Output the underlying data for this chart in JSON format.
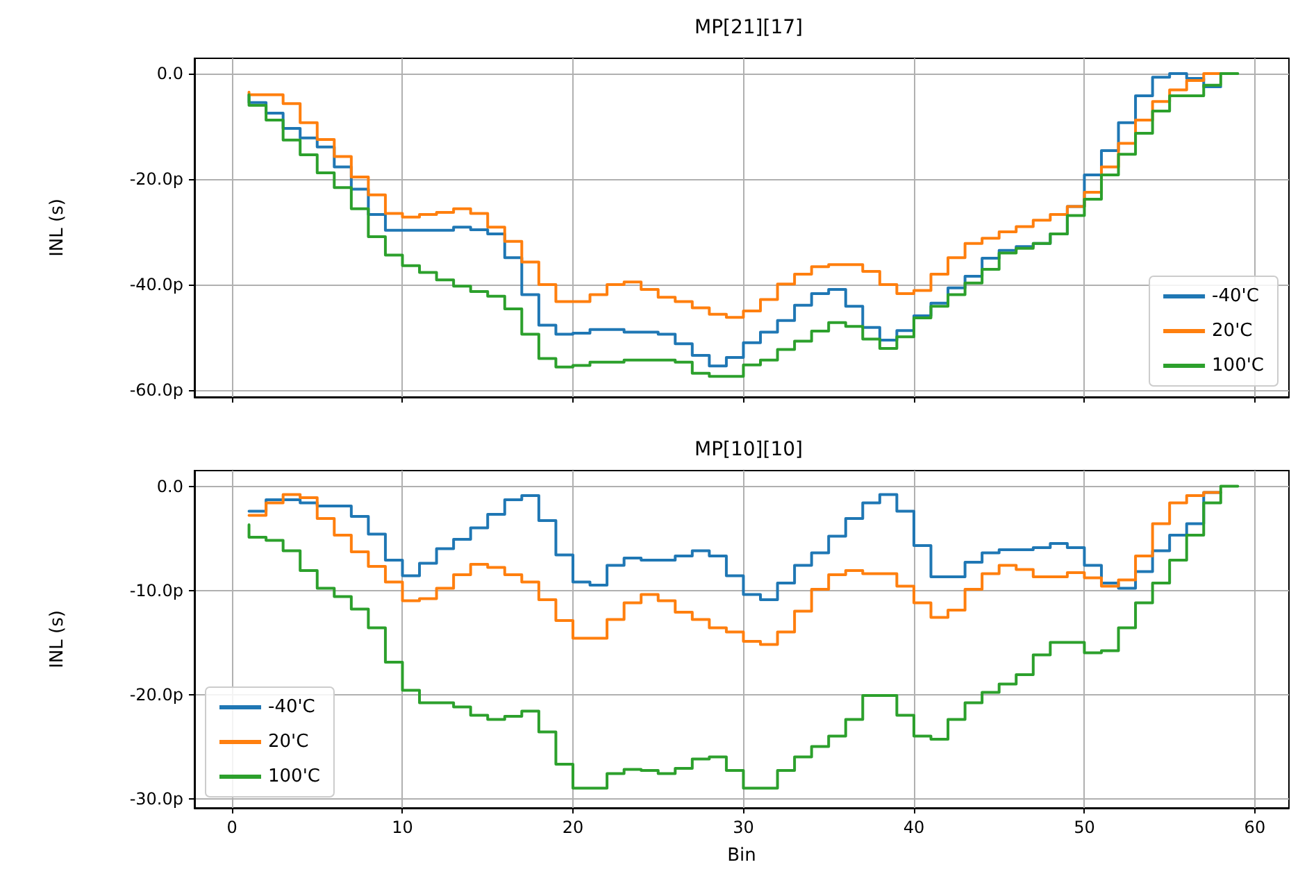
{
  "chart_data": [
    {
      "type": "step",
      "title": "MP[21][17]",
      "ylabel": "INL (s)",
      "x": [
        1,
        2,
        3,
        4,
        5,
        6,
        7,
        8,
        9,
        10,
        11,
        12,
        13,
        14,
        15,
        16,
        17,
        18,
        19,
        20,
        21,
        22,
        23,
        24,
        25,
        26,
        27,
        28,
        29,
        30,
        31,
        32,
        33,
        34,
        35,
        36,
        37,
        38,
        39,
        40,
        41,
        42,
        43,
        44,
        45,
        46,
        47,
        48,
        49,
        50,
        51,
        52,
        53,
        54,
        55,
        56,
        57,
        58,
        59
      ],
      "xlim": [
        -2.2,
        62
      ],
      "xticks": [
        0,
        10,
        20,
        30,
        40,
        50,
        60
      ],
      "ylim": [
        -61.3,
        2.9
      ],
      "yticks": [
        {
          "value": 0,
          "label": "0.0"
        },
        {
          "value": -20,
          "label": "-20.0p"
        },
        {
          "value": -40,
          "label": "-40.0p"
        },
        {
          "value": -60,
          "label": "-60.0p"
        }
      ],
      "tick_labels": "y",
      "grid": true,
      "legend": "bottom right",
      "marker": "none",
      "line_style": "solid",
      "series": [
        {
          "name": "-40'C",
          "color": "#1f77b4",
          "values": [
            -4,
            -5.5,
            -7.5,
            -10.4,
            -12.2,
            -13.9,
            -17.7,
            -21.9,
            -26.7,
            -29.7,
            -29.7,
            -29.7,
            -29.7,
            -29.1,
            -29.6,
            -30.4,
            -34.9,
            -41.9,
            -47.7,
            -49.4,
            -49.2,
            -48.5,
            -48.5,
            -49,
            -49,
            -49.4,
            -51.2,
            -53.4,
            -55.4,
            -53.8,
            -51,
            -49,
            -46.8,
            -43.9,
            -41.7,
            -40.9,
            -44.1,
            -48.1,
            -50.5,
            -48.7,
            -45.9,
            -43.5,
            -40.6,
            -38.4,
            -35,
            -33.5,
            -32.8,
            -32.2,
            -30.4,
            -25.2,
            -19.2,
            -14.6,
            -9.3,
            -4.2,
            -0.7,
            0,
            -0.9,
            -2.5,
            null
          ]
        },
        {
          "name": "20'C",
          "color": "#ff7f0e",
          "values": [
            -3.5,
            -4,
            -4,
            -5.7,
            -9.3,
            -12.5,
            -15.7,
            -19.6,
            -23,
            -26.5,
            -27.2,
            -26.7,
            -26.3,
            -25.6,
            -26.5,
            -29.1,
            -31.8,
            -35.7,
            -40,
            -43.2,
            -43.2,
            -41.9,
            -40,
            -39.5,
            -40.9,
            -42.4,
            -43.2,
            -44.4,
            -45.6,
            -46.2,
            -45,
            -42.8,
            -39.9,
            -38,
            -36.6,
            -36.2,
            -36.2,
            -37.5,
            -40,
            -41.7,
            -41.1,
            -38,
            -34.9,
            -32.2,
            -31.2,
            -30,
            -29,
            -27.8,
            -26.7,
            -25.2,
            -22.5,
            -17.7,
            -13.2,
            -8.8,
            -5.3,
            -3.1,
            -1.3,
            0,
            null
          ]
        },
        {
          "name": "100'C",
          "color": "#2ca02c",
          "values": [
            -4,
            -6,
            -8.8,
            -12.6,
            -15.4,
            -18.8,
            -21.6,
            -25.6,
            -30.9,
            -34.4,
            -36.4,
            -37.7,
            -39.1,
            -40.3,
            -41.3,
            -42.2,
            -44.6,
            -49.4,
            -54,
            -55.6,
            -55.3,
            -54.7,
            -54.7,
            -54.3,
            -54.3,
            -54.3,
            -54.7,
            -56.8,
            -57.4,
            -57.4,
            -55.2,
            -54.3,
            -52.3,
            -50.7,
            -48.8,
            -47.2,
            -47.9,
            -50.3,
            -52.1,
            -49.9,
            -46.3,
            -44.1,
            -41.9,
            -39.7,
            -37.1,
            -34,
            -33.1,
            -32.2,
            -30.4,
            -26.9,
            -23.8,
            -19.2,
            -15.3,
            -11.3,
            -7.1,
            -4.2,
            -4.2,
            -2.2,
            0
          ]
        }
      ]
    },
    {
      "type": "step",
      "title": "MP[10][10]",
      "xlabel": "Bin",
      "ylabel": "INL (s)",
      "x": [
        1,
        2,
        3,
        4,
        5,
        6,
        7,
        8,
        9,
        10,
        11,
        12,
        13,
        14,
        15,
        16,
        17,
        18,
        19,
        20,
        21,
        22,
        23,
        24,
        25,
        26,
        27,
        28,
        29,
        30,
        31,
        32,
        33,
        34,
        35,
        36,
        37,
        38,
        39,
        40,
        41,
        42,
        43,
        44,
        45,
        46,
        47,
        48,
        49,
        50,
        51,
        52,
        53,
        54,
        55,
        56,
        57,
        58,
        59
      ],
      "xlim": [
        -2.2,
        62
      ],
      "xticks": [
        0,
        10,
        20,
        30,
        40,
        50,
        60
      ],
      "ylim": [
        -30.9,
        1.5
      ],
      "yticks": [
        {
          "value": 0,
          "label": "0.0"
        },
        {
          "value": -10,
          "label": "-10.0p"
        },
        {
          "value": -20,
          "label": "-20.0p"
        },
        {
          "value": -30,
          "label": "-30.0p"
        }
      ],
      "grid": true,
      "legend": "bottom left",
      "marker": "none",
      "line_style": "solid",
      "series": [
        {
          "name": "-40'C",
          "color": "#1f77b4",
          "values": [
            -2.4,
            -2.4,
            -1.3,
            -1.3,
            -1.6,
            -1.9,
            -1.9,
            -2.9,
            -4.6,
            -7.1,
            -8.6,
            -7.4,
            -6,
            -5.1,
            -4,
            -2.7,
            -1.3,
            -0.9,
            -3.3,
            -6.6,
            -9.2,
            -9.5,
            -7.6,
            -6.9,
            -7.1,
            -7.1,
            -6.7,
            -6.2,
            -6.7,
            -8.6,
            -10.4,
            -10.9,
            -9.3,
            -7.6,
            -6.4,
            -4.8,
            -3.1,
            -1.6,
            -0.8,
            -2.4,
            -5.7,
            -8.7,
            -8.7,
            -7.3,
            -6.4,
            -6.1,
            -6.1,
            -5.9,
            -5.5,
            -5.9,
            -7.6,
            -9.3,
            -9.8,
            -8.2,
            -6.2,
            -4.7,
            -3.6,
            -0.6,
            null
          ]
        },
        {
          "name": "20'C",
          "color": "#ff7f0e",
          "values": [
            -2.8,
            -2.8,
            -1.6,
            -0.8,
            -1.1,
            -3.1,
            -4.7,
            -6.3,
            -7.7,
            -9.2,
            -11,
            -10.8,
            -9.8,
            -8.5,
            -7.5,
            -7.8,
            -8.5,
            -9.2,
            -10.9,
            -12.9,
            -14.6,
            -14.6,
            -12.8,
            -11.2,
            -10.4,
            -11,
            -12.1,
            -12.8,
            -13.6,
            -14,
            -14.9,
            -15.2,
            -14,
            -12,
            -9.9,
            -8.5,
            -8.1,
            -8.4,
            -8.4,
            -9.6,
            -11.2,
            -12.6,
            -11.9,
            -9.9,
            -8.4,
            -7.6,
            -8,
            -8.7,
            -8.7,
            -8.3,
            -8.8,
            -9.6,
            -9,
            -6.7,
            -3.6,
            -1.6,
            -0.9,
            -0.6,
            null
          ]
        },
        {
          "name": "100'C",
          "color": "#2ca02c",
          "values": [
            -3.7,
            -4.9,
            -5.2,
            -6.2,
            -8.1,
            -9.8,
            -10.6,
            -11.8,
            -13.6,
            -16.9,
            -19.6,
            -20.8,
            -20.8,
            -21.2,
            -22,
            -22.4,
            -22.1,
            -21.6,
            -23.6,
            -26.7,
            -29,
            -29,
            -27.6,
            -27.2,
            -27.3,
            -27.6,
            -27.1,
            -26.2,
            -26,
            -27.3,
            -29,
            -29,
            -27.3,
            -26,
            -25,
            -24,
            -22.4,
            -20.1,
            -20.1,
            -22,
            -24,
            -24.3,
            -22.4,
            -20.8,
            -19.8,
            -19,
            -18.1,
            -16.2,
            -15,
            -15,
            -16,
            -15.8,
            -13.6,
            -11.2,
            -9.3,
            -7.1,
            -4.7,
            -1.6,
            0
          ]
        }
      ]
    }
  ]
}
